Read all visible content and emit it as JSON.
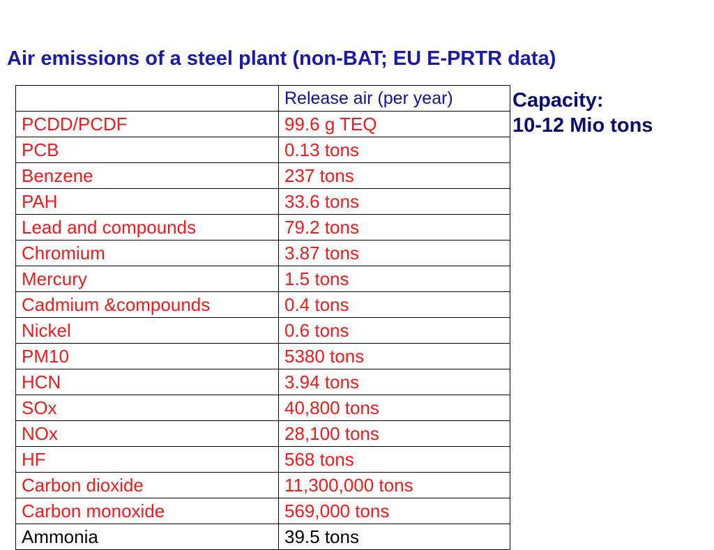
{
  "slide": {
    "title": "Air emissions of a steel plant (non-BAT; EU E-PRTR data)",
    "capacity_label": "Capacity:",
    "capacity_value": "10-12 Mio tons"
  },
  "table": {
    "header": [
      "",
      "Release air (per year)"
    ],
    "rows": [
      [
        "PCDD/PCDF",
        "99.6 g TEQ"
      ],
      [
        "PCB",
        "0.13 tons"
      ],
      [
        "Benzene",
        "237 tons"
      ],
      [
        "PAH",
        "33.6 tons"
      ],
      [
        "Lead and compounds",
        "79.2 tons"
      ],
      [
        "Chromium",
        "3.87 tons"
      ],
      [
        "Mercury",
        "1.5 tons"
      ],
      [
        "Cadmium &compounds",
        "0.4 tons"
      ],
      [
        "Nickel",
        "0.6 tons"
      ],
      [
        "PM10",
        "5380 tons"
      ],
      [
        "HCN",
        "3.94 tons"
      ],
      [
        "SOx",
        "40,800 tons"
      ],
      [
        "NOx",
        "28,100 tons"
      ],
      [
        "HF",
        "568 tons"
      ],
      [
        "Carbon dioxide",
        "11,300,000 tons"
      ],
      [
        "Carbon monoxide",
        "569,000 tons"
      ]
    ],
    "partial_row": [
      "Ammonia",
      "39.5 tons"
    ]
  },
  "colors": {
    "title": "#1a1aa6",
    "capacity": "#0b0b70",
    "row_text": "#ee1c1c",
    "header_text": "#111199",
    "border": "#000000"
  }
}
